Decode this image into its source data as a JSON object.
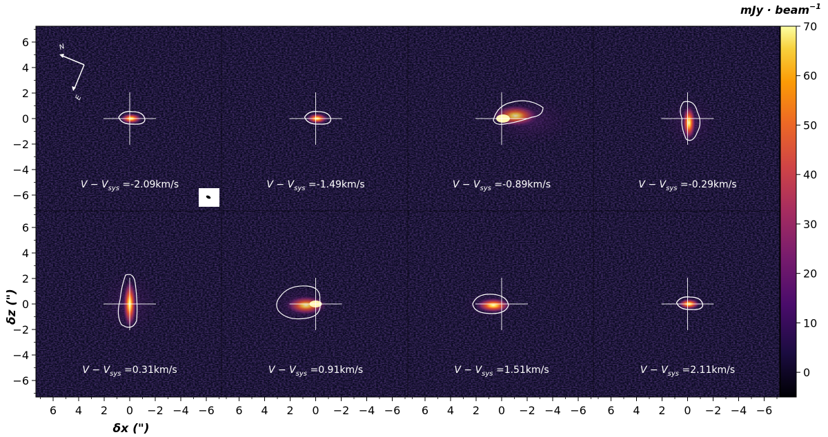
{
  "figure": {
    "panels": [
      {
        "velocity_label": "V − V",
        "sys": "sys",
        "value": "=-2.09km/s",
        "row": 0,
        "col": 0,
        "shape": "compact"
      },
      {
        "velocity_label": "V − V",
        "sys": "sys",
        "value": "=-1.49km/s",
        "row": 0,
        "col": 1,
        "shape": "compact"
      },
      {
        "velocity_label": "V − V",
        "sys": "sys",
        "value": "=-0.89km/s",
        "row": 0,
        "col": 2,
        "shape": "wide-right"
      },
      {
        "velocity_label": "V − V",
        "sys": "sys",
        "value": "=-0.29km/s",
        "row": 0,
        "col": 3,
        "shape": "vertical"
      },
      {
        "velocity_label": "V − V",
        "sys": "sys",
        "value": "=0.31km/s",
        "row": 1,
        "col": 0,
        "shape": "vertical-tall"
      },
      {
        "velocity_label": "V − V",
        "sys": "sys",
        "value": "=0.91km/s",
        "row": 1,
        "col": 1,
        "shape": "wide-left"
      },
      {
        "velocity_label": "V − V",
        "sys": "sys",
        "value": "=1.51km/s",
        "row": 1,
        "col": 2,
        "shape": "left"
      },
      {
        "velocity_label": "V − V",
        "sys": "sys",
        "value": "=2.11km/s",
        "row": 1,
        "col": 3,
        "shape": "compact"
      }
    ],
    "x_ticks": [
      "6",
      "4",
      "2",
      "0",
      "−2",
      "−4",
      "−6"
    ],
    "y_ticks": [
      "6",
      "4",
      "2",
      "0",
      "−2",
      "−4",
      "−6"
    ],
    "xlabel": "δx (\")",
    "ylabel": "δz (\")",
    "compass": {
      "north": "N",
      "east": "E"
    },
    "colorbar": {
      "unit_label": "mJy · beam",
      "unit_exponent": "−1",
      "ticks": [
        "70",
        "60",
        "50",
        "40",
        "30",
        "20",
        "10",
        "0"
      ],
      "range": [
        -5,
        70
      ],
      "colormap": "inferno"
    },
    "colors": {
      "background": "#0a0a1f",
      "contour": "#ffffff",
      "emission_core": "#fff4a0",
      "emission_mid": "#e8552a",
      "emission_outer": "#8a2a6a"
    }
  }
}
